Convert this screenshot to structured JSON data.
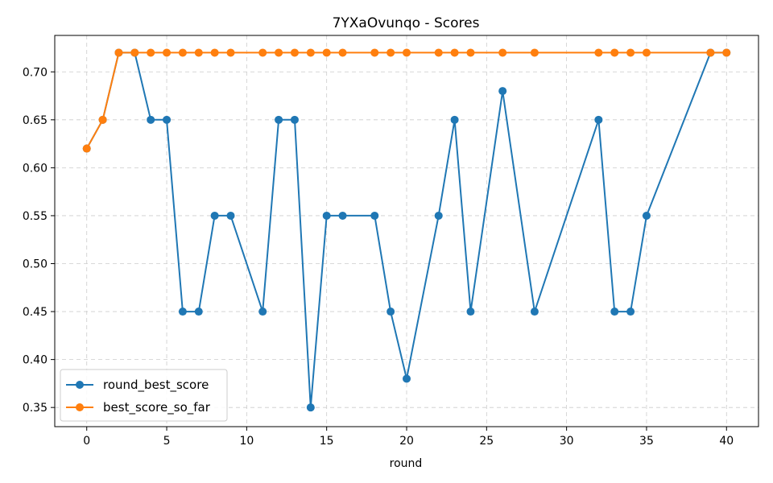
{
  "chart_data": {
    "type": "line",
    "title": "7YXaOvunqo - Scores",
    "xlabel": "round",
    "ylabel": "",
    "xlim": [
      -2,
      42
    ],
    "ylim": [
      0.33,
      0.738
    ],
    "xticks": [
      0,
      5,
      10,
      15,
      20,
      25,
      30,
      35,
      40
    ],
    "yticks": [
      0.35,
      0.4,
      0.45,
      0.5,
      0.55,
      0.6,
      0.65,
      0.7
    ],
    "grid": true,
    "legend_position": "lower-left",
    "series": [
      {
        "name": "round_best_score",
        "color": "#1f77b4",
        "marker": "circle",
        "x": [
          0,
          1,
          2,
          3,
          4,
          5,
          6,
          7,
          8,
          9,
          11,
          12,
          13,
          14,
          15,
          16,
          18,
          19,
          20,
          22,
          23,
          24,
          26,
          28,
          32,
          33,
          34,
          35,
          39,
          40
        ],
        "y": [
          0.62,
          0.65,
          0.72,
          0.72,
          0.65,
          0.65,
          0.45,
          0.45,
          0.55,
          0.55,
          0.45,
          0.65,
          0.65,
          0.35,
          0.55,
          0.55,
          0.55,
          0.45,
          0.38,
          0.55,
          0.65,
          0.45,
          0.68,
          0.45,
          0.65,
          0.45,
          0.45,
          0.55,
          0.72,
          0.72
        ]
      },
      {
        "name": "best_score_so_far",
        "color": "#ff7f0e",
        "marker": "circle",
        "x": [
          0,
          1,
          2,
          3,
          4,
          5,
          6,
          7,
          8,
          9,
          11,
          12,
          13,
          14,
          15,
          16,
          18,
          19,
          20,
          22,
          23,
          24,
          26,
          28,
          32,
          33,
          34,
          35,
          39,
          40
        ],
        "y": [
          0.62,
          0.65,
          0.72,
          0.72,
          0.72,
          0.72,
          0.72,
          0.72,
          0.72,
          0.72,
          0.72,
          0.72,
          0.72,
          0.72,
          0.72,
          0.72,
          0.72,
          0.72,
          0.72,
          0.72,
          0.72,
          0.72,
          0.72,
          0.72,
          0.72,
          0.72,
          0.72,
          0.72,
          0.72,
          0.72
        ]
      }
    ]
  }
}
